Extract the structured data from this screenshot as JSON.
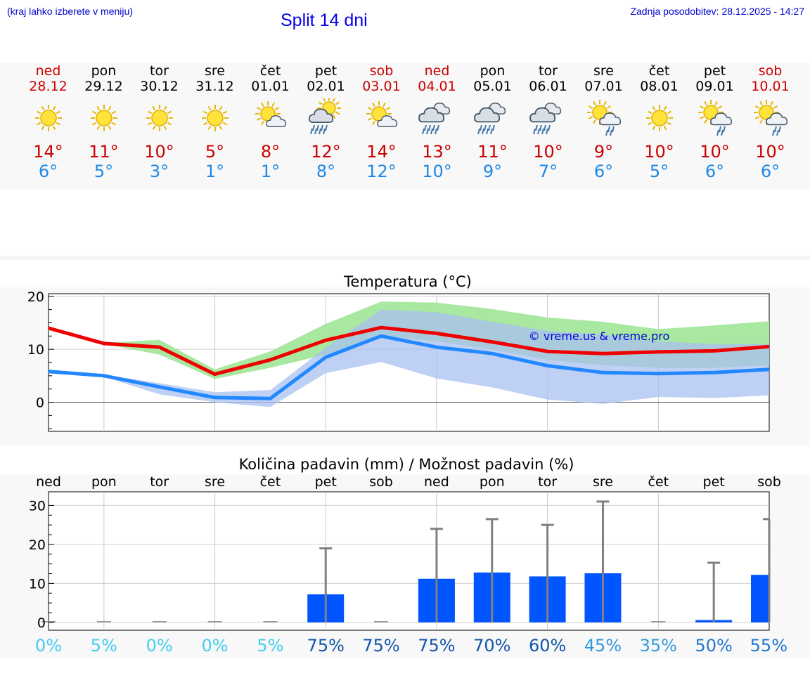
{
  "header": {
    "hint": "(kraj lahko izberete v meniju)",
    "title": "Split 14 dni",
    "updated": "Zadnja posodobitev: 28.12.2025 - 14:27"
  },
  "days": [
    {
      "name": "ned",
      "date": "28.12",
      "weekend": true,
      "icon": "sun-icon",
      "tmax": "14°",
      "tmin": "6°"
    },
    {
      "name": "pon",
      "date": "29.12",
      "weekend": false,
      "icon": "sun-icon",
      "tmax": "11°",
      "tmin": "5°"
    },
    {
      "name": "tor",
      "date": "30.12",
      "weekend": false,
      "icon": "sun-icon",
      "tmax": "10°",
      "tmin": "3°"
    },
    {
      "name": "sre",
      "date": "31.12",
      "weekend": false,
      "icon": "sun-icon",
      "tmax": "5°",
      "tmin": "1°"
    },
    {
      "name": "čet",
      "date": "01.01",
      "weekend": false,
      "icon": "sun-cloud-icon",
      "tmax": "8°",
      "tmin": "1°"
    },
    {
      "name": "pet",
      "date": "02.01",
      "weekend": false,
      "icon": "sun-rain-cloud-icon",
      "tmax": "12°",
      "tmin": "8°"
    },
    {
      "name": "sob",
      "date": "03.01",
      "weekend": true,
      "icon": "sun-cloud-icon",
      "tmax": "14°",
      "tmin": "12°"
    },
    {
      "name": "ned",
      "date": "04.01",
      "weekend": true,
      "icon": "rain-cloud-icon",
      "tmax": "13°",
      "tmin": "10°"
    },
    {
      "name": "pon",
      "date": "05.01",
      "weekend": false,
      "icon": "rain-cloud-icon",
      "tmax": "11°",
      "tmin": "9°"
    },
    {
      "name": "tor",
      "date": "06.01",
      "weekend": false,
      "icon": "rain-cloud-icon",
      "tmax": "10°",
      "tmin": "7°"
    },
    {
      "name": "sre",
      "date": "07.01",
      "weekend": false,
      "icon": "sun-shower-icon",
      "tmax": "9°",
      "tmin": "6°"
    },
    {
      "name": "čet",
      "date": "08.01",
      "weekend": false,
      "icon": "sun-icon",
      "tmax": "10°",
      "tmin": "5°"
    },
    {
      "name": "pet",
      "date": "09.01",
      "weekend": false,
      "icon": "sun-shower-icon",
      "tmax": "10°",
      "tmin": "6°"
    },
    {
      "name": "sob",
      "date": "10.01",
      "weekend": true,
      "icon": "sun-shower-icon",
      "tmax": "10°",
      "tmin": "6°"
    }
  ],
  "colors": {
    "weekend": "#cc0000",
    "max_line": "#ee0000",
    "min_line": "#2288ff",
    "max_band": "#a8e8a0",
    "min_band": "#a8c0f0",
    "overlap_band": "#78c4a8",
    "precip_bar": "#0055ff",
    "error_bar": "#808080"
  },
  "chart_data": [
    {
      "type": "line",
      "title": "Temperatura (°C)",
      "watermark": "© vreme.us & vreme.pro",
      "ylim": [
        -5.5,
        20.5
      ],
      "yticks": [
        0,
        10,
        20
      ],
      "grid": true,
      "x": [
        0,
        1,
        2,
        3,
        4,
        5,
        6,
        7,
        8,
        9,
        10,
        11,
        12,
        13
      ],
      "series": [
        {
          "name": "max",
          "values": [
            14.0,
            11.1,
            10.4,
            5.3,
            8.0,
            11.7,
            14.1,
            13.0,
            11.4,
            9.6,
            9.2,
            9.5,
            9.7,
            10.5
          ],
          "band_low": [
            13.8,
            11.0,
            9.0,
            4.4,
            6.5,
            9.0,
            12.5,
            11.5,
            10.0,
            8.0,
            7.0,
            6.5,
            6.5,
            7.0
          ],
          "band_high": [
            14.2,
            11.2,
            11.8,
            6.2,
            9.6,
            14.8,
            19.0,
            18.8,
            17.6,
            16.0,
            15.2,
            13.8,
            14.5,
            15.3
          ]
        },
        {
          "name": "min",
          "values": [
            5.8,
            5.0,
            2.9,
            0.9,
            0.7,
            8.5,
            12.5,
            10.4,
            9.2,
            6.9,
            5.6,
            5.4,
            5.6,
            6.2
          ],
          "band_low": [
            5.4,
            4.8,
            1.5,
            0.0,
            -0.9,
            5.5,
            7.6,
            4.5,
            2.8,
            0.5,
            -0.3,
            1.0,
            0.8,
            1.3
          ],
          "band_high": [
            6.2,
            5.2,
            3.6,
            1.9,
            2.3,
            10.3,
            17.5,
            17.0,
            15.2,
            13.5,
            12.8,
            11.5,
            11.0,
            11.0
          ]
        }
      ]
    },
    {
      "type": "bar",
      "title": "Količina padavin (mm) / Možnost padavin (%)",
      "ylim": [
        -2,
        33.5
      ],
      "yticks": [
        0,
        10,
        20,
        30
      ],
      "grid": true,
      "categories": [
        "ned",
        "pon",
        "tor",
        "sre",
        "čet",
        "pet",
        "sob",
        "ned",
        "pon",
        "tor",
        "sre",
        "čet",
        "pet",
        "sob"
      ],
      "amount": [
        0,
        0,
        0,
        0,
        0,
        7.2,
        0,
        11.2,
        12.8,
        11.8,
        12.6,
        0,
        0.6,
        12.2
      ],
      "error_high": [
        0,
        0,
        0,
        0,
        0,
        19.0,
        0,
        24.0,
        26.5,
        25.0,
        31.0,
        0,
        15.3,
        26.5
      ],
      "chance": [
        "0%",
        "5%",
        "0%",
        "0%",
        "5%",
        "75%",
        "75%",
        "75%",
        "70%",
        "60%",
        "45%",
        "35%",
        "50%",
        "55%"
      ],
      "chance_colors": [
        "#44ccee",
        "#44ccee",
        "#44ccee",
        "#44ccee",
        "#44ccee",
        "#1155aa",
        "#1155aa",
        "#1155aa",
        "#1155aa",
        "#1155aa",
        "#3399dd",
        "#3399dd",
        "#2277cc",
        "#2277cc"
      ]
    }
  ]
}
